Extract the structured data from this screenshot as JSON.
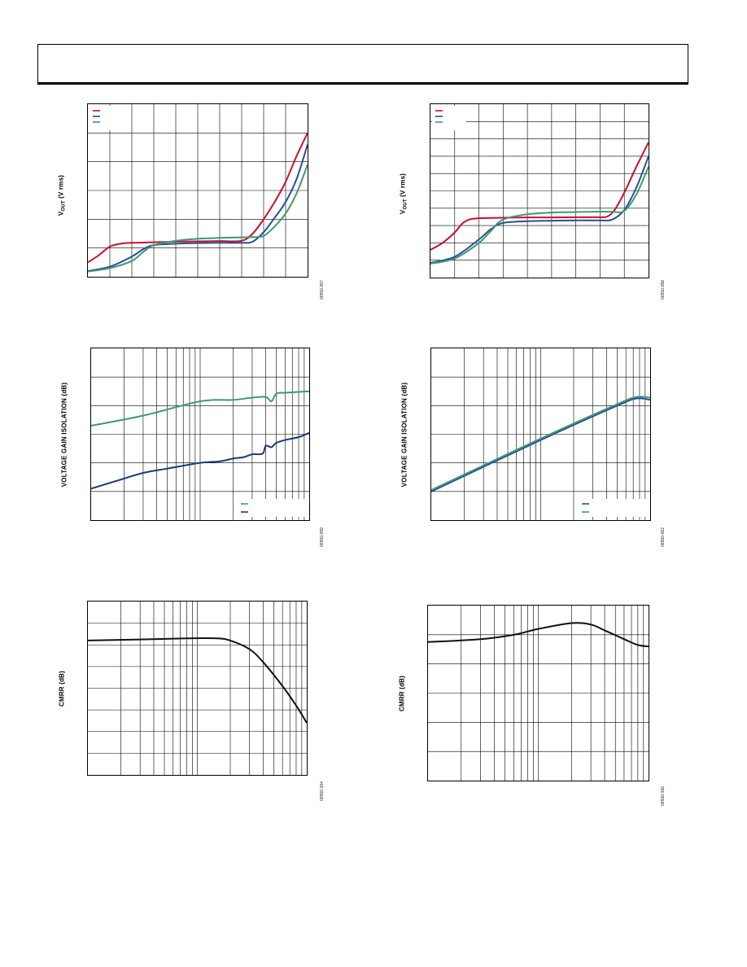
{
  "page": {
    "header_text": ""
  },
  "colors": {
    "blue": "#2b4b9b",
    "red": "#c8102e",
    "green": "#3c9b6e",
    "navy": "#1f3a7a",
    "black": "#111111",
    "grid": "#000000"
  },
  "figures": [
    {
      "id": "vout-left",
      "ylabel_main": "V",
      "ylabel_sub": "OUT",
      "ylabel_rest": " (V rms)",
      "fig_id": "06550-057"
    },
    {
      "id": "vout-right",
      "ylabel_main": "V",
      "ylabel_sub": "OUT",
      "ylabel_rest": " (V rms)",
      "fig_id": "06550-058"
    },
    {
      "id": "isolation-left",
      "ylabel": "VOLTAGE GAIN ISOLATION (dB)",
      "fig_id": "06550-059"
    },
    {
      "id": "isolation-right",
      "ylabel": "VOLTAGE GAIN ISOLATION (dB)",
      "fig_id": "06550-062"
    },
    {
      "id": "cmrr-left",
      "ylabel": "CMRR (dB)",
      "fig_id": "06550-154"
    },
    {
      "id": "cmrr-right",
      "ylabel": "CMRR (dB)",
      "fig_id": "06550-156"
    }
  ],
  "chart_data": [
    {
      "type": "line",
      "x_scale": "linear",
      "xlim": [
        0,
        10
      ],
      "ylim": [
        0,
        6
      ],
      "grid": true,
      "x_divisions": 10,
      "y_divisions": 6,
      "legend": "top-left",
      "series": [
        {
          "color": "red",
          "x": [
            0,
            0.5,
            1,
            1.5,
            2,
            3,
            4,
            5,
            6,
            7,
            7.5,
            8,
            8.5,
            9,
            9.5,
            10
          ],
          "y": [
            0.5,
            0.75,
            1.05,
            1.15,
            1.18,
            1.2,
            1.22,
            1.23,
            1.24,
            1.25,
            1.5,
            2.0,
            2.6,
            3.3,
            4.2,
            5.0
          ]
        },
        {
          "color": "blue",
          "x": [
            0,
            1,
            2,
            2.5,
            3,
            4,
            5,
            6,
            7,
            7.5,
            8,
            8.5,
            9,
            9.5,
            10
          ],
          "y": [
            0.2,
            0.35,
            0.7,
            0.95,
            1.1,
            1.15,
            1.17,
            1.18,
            1.18,
            1.22,
            1.55,
            2.05,
            2.6,
            3.4,
            4.6
          ]
        },
        {
          "color": "green",
          "x": [
            0,
            1,
            2,
            2.5,
            3,
            4,
            5,
            6,
            7,
            7.5,
            8,
            8.5,
            9,
            9.5,
            10
          ],
          "y": [
            0.18,
            0.3,
            0.55,
            0.85,
            1.1,
            1.25,
            1.32,
            1.35,
            1.37,
            1.38,
            1.42,
            1.75,
            2.2,
            2.9,
            3.9
          ]
        }
      ]
    },
    {
      "type": "line",
      "x_scale": "linear",
      "xlim": [
        0,
        9
      ],
      "ylim": [
        0,
        10
      ],
      "grid": true,
      "x_divisions": 9,
      "y_divisions": 10,
      "legend": "top-left",
      "series": [
        {
          "color": "red",
          "x": [
            0,
            0.5,
            1,
            1.3,
            1.6,
            2,
            3,
            4,
            5,
            6,
            7,
            7.3,
            7.6,
            8,
            8.5,
            9
          ],
          "y": [
            1.6,
            2.0,
            2.6,
            3.1,
            3.35,
            3.42,
            3.45,
            3.47,
            3.47,
            3.48,
            3.48,
            3.52,
            3.9,
            4.9,
            6.4,
            7.8
          ]
        },
        {
          "color": "blue",
          "x": [
            0,
            1,
            2,
            2.5,
            3,
            4,
            5,
            6,
            7,
            7.5,
            8,
            8.5,
            9
          ],
          "y": [
            0.85,
            1.2,
            2.2,
            2.8,
            3.15,
            3.25,
            3.28,
            3.3,
            3.3,
            3.35,
            3.9,
            5.2,
            7.0
          ]
        },
        {
          "color": "green",
          "x": [
            0,
            1,
            2,
            2.5,
            3,
            4,
            5,
            6,
            7,
            7.5,
            8,
            8.5,
            9
          ],
          "y": [
            0.8,
            1.1,
            2.0,
            2.7,
            3.35,
            3.65,
            3.75,
            3.78,
            3.8,
            3.8,
            3.85,
            4.8,
            6.4
          ]
        }
      ]
    },
    {
      "type": "line",
      "x_scale": "log",
      "xlim": [
        1,
        100
      ],
      "ylim": [
        0,
        6
      ],
      "grid": true,
      "y_divisions": 6,
      "legend": "bottom-right",
      "series": [
        {
          "color": "green",
          "x": [
            1,
            3,
            10,
            20,
            30,
            40,
            45,
            50,
            60,
            80,
            100
          ],
          "y": [
            3.3,
            3.65,
            4.15,
            4.2,
            4.28,
            4.3,
            4.15,
            4.42,
            4.45,
            4.48,
            4.5
          ]
        },
        {
          "color": "navy",
          "x": [
            1,
            2,
            3,
            5,
            10,
            15,
            20,
            25,
            30,
            35,
            38,
            40,
            45,
            50,
            60,
            80,
            100
          ],
          "y": [
            1.1,
            1.45,
            1.65,
            1.8,
            2.0,
            2.05,
            2.15,
            2.2,
            2.3,
            2.3,
            2.35,
            2.6,
            2.55,
            2.7,
            2.8,
            2.9,
            3.05
          ]
        }
      ]
    },
    {
      "type": "line",
      "x_scale": "log",
      "xlim": [
        1,
        100
      ],
      "ylim": [
        0,
        6
      ],
      "grid": true,
      "y_divisions": 6,
      "legend": "bottom-right",
      "series": [
        {
          "color": "blue",
          "x": [
            1,
            10,
            50,
            75,
            100
          ],
          "y": [
            1.0,
            2.8,
            4.0,
            4.25,
            4.2
          ]
        },
        {
          "color": "green",
          "x": [
            1,
            10,
            50,
            75,
            100
          ],
          "y": [
            1.05,
            2.85,
            4.05,
            4.3,
            4.28
          ]
        }
      ]
    },
    {
      "type": "line",
      "x_scale": "log",
      "xlim": [
        1,
        100
      ],
      "ylim": [
        0,
        8
      ],
      "grid": true,
      "y_divisions": 8,
      "legend": "none",
      "series": [
        {
          "color": "black",
          "x": [
            1,
            3,
            8,
            15,
            20,
            30,
            40,
            60,
            80,
            100
          ],
          "y": [
            6.2,
            6.25,
            6.3,
            6.3,
            6.2,
            5.8,
            5.2,
            4.1,
            3.2,
            2.4
          ]
        }
      ]
    },
    {
      "type": "line",
      "x_scale": "log",
      "xlim": [
        1,
        100
      ],
      "ylim": [
        0,
        6
      ],
      "grid": true,
      "y_divisions": 6,
      "legend": "none",
      "series": [
        {
          "color": "black",
          "x": [
            1,
            3,
            6,
            10,
            20,
            30,
            40,
            60,
            80,
            100
          ],
          "y": [
            4.75,
            4.85,
            5.0,
            5.2,
            5.4,
            5.35,
            5.15,
            4.85,
            4.65,
            4.6
          ]
        }
      ]
    }
  ]
}
